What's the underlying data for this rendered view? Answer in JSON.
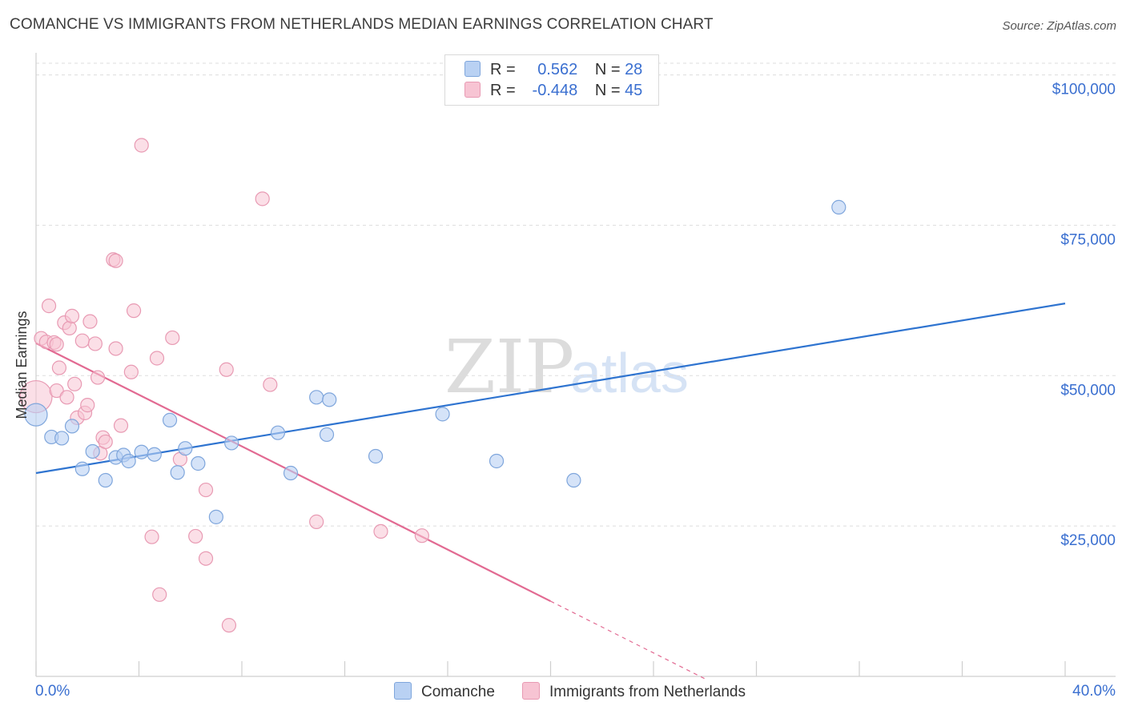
{
  "title": "COMANCHE VS IMMIGRANTS FROM NETHERLANDS MEDIAN EARNINGS CORRELATION CHART",
  "source": "Source: ZipAtlas.com",
  "watermark": {
    "zip": "ZIP",
    "atlas": "atlas"
  },
  "legend": {
    "rows": [
      {
        "r_label": "R =",
        "r_value": "0.562",
        "n_label": "N =",
        "n_value": "28"
      },
      {
        "r_label": "R =",
        "r_value": "-0.448",
        "n_label": "N =",
        "n_value": "45"
      }
    ]
  },
  "bottom_legend": {
    "series1": "Comanche",
    "series2": "Immigrants from Netherlands"
  },
  "colors": {
    "blue_fill": "#b9d1f3",
    "blue_stroke": "#7fa6dc",
    "blue_line": "#2f74d0",
    "pink_fill": "#f7c4d3",
    "pink_stroke": "#e89ab3",
    "pink_line": "#e26a92",
    "axis_text": "#3a6fd0",
    "grid": "#dddddd"
  },
  "chart_data": {
    "type": "scatter",
    "title": "COMANCHE VS IMMIGRANTS FROM NETHERLANDS MEDIAN EARNINGS CORRELATION CHART",
    "xlabel": "",
    "ylabel": "Median Earnings",
    "xlim": [
      0,
      40
    ],
    "ylim": [
      0,
      105000
    ],
    "x_tick_labels": [
      "0.0%",
      "40.0%"
    ],
    "y_ticks": [
      25000,
      50000,
      75000,
      100000
    ],
    "y_tick_labels": [
      "$25,000",
      "$50,000",
      "$75,000",
      "$100,000"
    ],
    "grid": true,
    "legend_position": "top-center",
    "series": [
      {
        "name": "Comanche",
        "r": 0.562,
        "n": 28,
        "trend": {
          "x": [
            0,
            40
          ],
          "y": [
            33800,
            62000
          ]
        },
        "points": [
          {
            "x": 0.0,
            "y": 43500,
            "big": true
          },
          {
            "x": 0.6,
            "y": 39800
          },
          {
            "x": 1.0,
            "y": 39600
          },
          {
            "x": 1.4,
            "y": 41600
          },
          {
            "x": 1.8,
            "y": 34500
          },
          {
            "x": 2.2,
            "y": 37400
          },
          {
            "x": 2.7,
            "y": 32600
          },
          {
            "x": 3.1,
            "y": 36400
          },
          {
            "x": 3.4,
            "y": 36800
          },
          {
            "x": 3.6,
            "y": 35800
          },
          {
            "x": 4.1,
            "y": 37300
          },
          {
            "x": 4.6,
            "y": 36900
          },
          {
            "x": 5.2,
            "y": 42600
          },
          {
            "x": 5.5,
            "y": 33900
          },
          {
            "x": 5.8,
            "y": 37900
          },
          {
            "x": 6.3,
            "y": 35400
          },
          {
            "x": 7.0,
            "y": 26500
          },
          {
            "x": 7.6,
            "y": 38800
          },
          {
            "x": 9.4,
            "y": 40500
          },
          {
            "x": 9.9,
            "y": 33800
          },
          {
            "x": 10.9,
            "y": 46400
          },
          {
            "x": 11.4,
            "y": 46000
          },
          {
            "x": 11.3,
            "y": 40200
          },
          {
            "x": 13.2,
            "y": 36600
          },
          {
            "x": 15.8,
            "y": 43600
          },
          {
            "x": 17.9,
            "y": 35800
          },
          {
            "x": 20.9,
            "y": 32600
          },
          {
            "x": 31.2,
            "y": 78000
          }
        ]
      },
      {
        "name": "Immigrants from Netherlands",
        "r": -0.448,
        "n": 45,
        "trend": {
          "x": [
            0,
            20
          ],
          "y": [
            55400,
            12500
          ]
        },
        "trend_dashed": {
          "x": [
            20,
            26
          ],
          "y": [
            12500,
            -400
          ]
        },
        "points": [
          {
            "x": 0.0,
            "y": 46500,
            "big": true
          },
          {
            "x": 0.2,
            "y": 56200
          },
          {
            "x": 0.4,
            "y": 55600
          },
          {
            "x": 0.5,
            "y": 61600
          },
          {
            "x": 0.7,
            "y": 55500
          },
          {
            "x": 0.8,
            "y": 55200
          },
          {
            "x": 0.8,
            "y": 47500
          },
          {
            "x": 0.9,
            "y": 51300
          },
          {
            "x": 1.1,
            "y": 58800
          },
          {
            "x": 1.2,
            "y": 46400
          },
          {
            "x": 1.3,
            "y": 57900
          },
          {
            "x": 1.4,
            "y": 59900
          },
          {
            "x": 1.5,
            "y": 48600
          },
          {
            "x": 1.6,
            "y": 43000
          },
          {
            "x": 1.8,
            "y": 55800
          },
          {
            "x": 1.9,
            "y": 43800
          },
          {
            "x": 2.0,
            "y": 45100
          },
          {
            "x": 2.1,
            "y": 59000
          },
          {
            "x": 2.3,
            "y": 55300
          },
          {
            "x": 2.4,
            "y": 49700
          },
          {
            "x": 2.5,
            "y": 37100
          },
          {
            "x": 2.6,
            "y": 39700
          },
          {
            "x": 2.7,
            "y": 39000
          },
          {
            "x": 3.0,
            "y": 69300
          },
          {
            "x": 3.1,
            "y": 54500
          },
          {
            "x": 3.1,
            "y": 69100
          },
          {
            "x": 3.3,
            "y": 41700
          },
          {
            "x": 3.7,
            "y": 50600
          },
          {
            "x": 3.8,
            "y": 60800
          },
          {
            "x": 4.1,
            "y": 88300
          },
          {
            "x": 4.5,
            "y": 23200
          },
          {
            "x": 4.7,
            "y": 52900
          },
          {
            "x": 4.8,
            "y": 13600
          },
          {
            "x": 5.3,
            "y": 56300
          },
          {
            "x": 5.6,
            "y": 36100
          },
          {
            "x": 6.2,
            "y": 23300
          },
          {
            "x": 6.6,
            "y": 19600
          },
          {
            "x": 6.6,
            "y": 31000
          },
          {
            "x": 7.4,
            "y": 51000
          },
          {
            "x": 7.5,
            "y": 8500
          },
          {
            "x": 8.8,
            "y": 79400
          },
          {
            "x": 9.1,
            "y": 48500
          },
          {
            "x": 10.9,
            "y": 25700
          },
          {
            "x": 13.4,
            "y": 24100
          },
          {
            "x": 15.0,
            "y": 23400
          }
        ]
      }
    ]
  }
}
